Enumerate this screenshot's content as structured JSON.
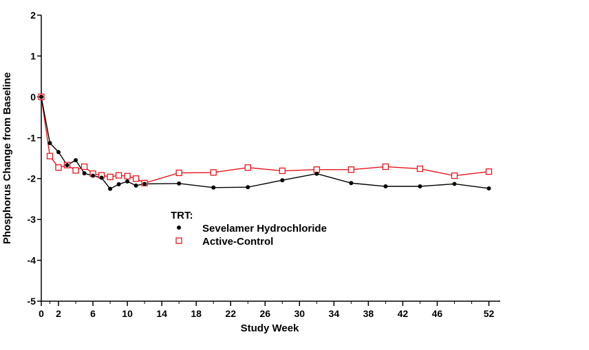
{
  "chart_data": {
    "type": "line",
    "title": "",
    "xlabel": "Study Week",
    "ylabel": "Phosphorus Change from Baseline",
    "xlim": [
      0,
      53
    ],
    "ylim": [
      -5,
      2
    ],
    "x_ticks": [
      0,
      2,
      6,
      10,
      14,
      18,
      22,
      26,
      30,
      34,
      38,
      42,
      46,
      52
    ],
    "y_ticks": [
      2,
      1,
      0,
      -1,
      -2,
      -3,
      -4,
      -5
    ],
    "legend": {
      "title": "TRT:",
      "position": "lower-left"
    },
    "series": [
      {
        "name": "Sevelamer Hydrochloride",
        "marker": "filled-circle",
        "color": "#000000",
        "x": [
          0,
          1,
          2,
          3,
          4,
          5,
          6,
          7,
          8,
          9,
          10,
          11,
          12,
          16,
          20,
          24,
          28,
          32,
          36,
          40,
          44,
          48,
          52
        ],
        "y": [
          0.0,
          -1.13,
          -1.35,
          -1.67,
          -1.55,
          -1.87,
          -1.93,
          -1.98,
          -2.25,
          -2.14,
          -2.07,
          -2.17,
          -2.13,
          -2.12,
          -2.22,
          -2.21,
          -2.04,
          -1.88,
          -2.11,
          -2.19,
          -2.19,
          -2.13,
          -2.24
        ]
      },
      {
        "name": "Active-Control",
        "marker": "open-square",
        "color": "#e8141c",
        "x": [
          0,
          1,
          2,
          3,
          4,
          5,
          6,
          7,
          8,
          9,
          10,
          11,
          12,
          16,
          20,
          24,
          28,
          32,
          36,
          40,
          44,
          48,
          52
        ],
        "y": [
          0.0,
          -1.45,
          -1.73,
          -1.67,
          -1.8,
          -1.71,
          -1.88,
          -1.92,
          -1.96,
          -1.92,
          -1.94,
          -2.0,
          -2.11,
          -1.86,
          -1.85,
          -1.73,
          -1.81,
          -1.78,
          -1.78,
          -1.71,
          -1.76,
          -1.93,
          -1.83
        ]
      }
    ]
  }
}
